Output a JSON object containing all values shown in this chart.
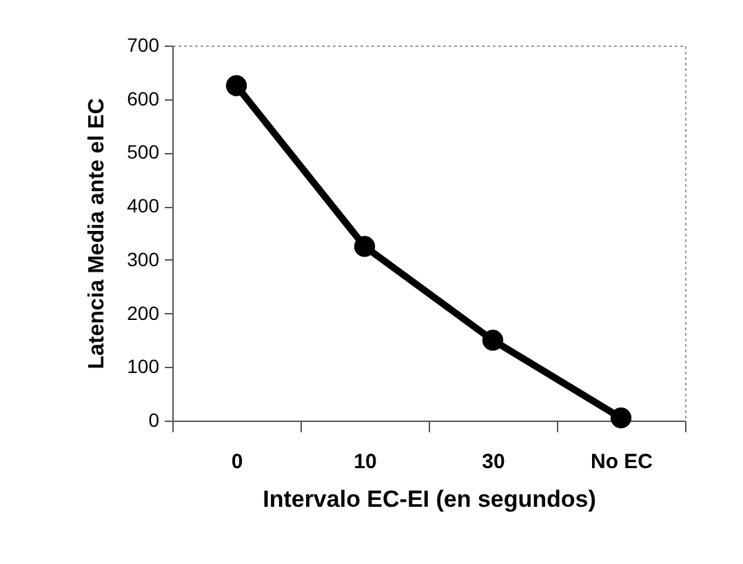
{
  "chart_data": {
    "type": "line",
    "xlabel": "Intervalo EC-EI (en segundos)",
    "ylabel": "Latencia Media ante el EC",
    "categories": [
      "0",
      "10",
      "30",
      "No EC"
    ],
    "series": [
      {
        "color": "#000000",
        "values": [
          625,
          325,
          150,
          5
        ]
      }
    ],
    "ylim": [
      0,
      700
    ],
    "yticks": [
      0,
      100,
      200,
      300,
      400,
      500,
      600,
      700
    ],
    "grid": false,
    "legend": false,
    "marker": "circle",
    "line_style": "solid"
  }
}
